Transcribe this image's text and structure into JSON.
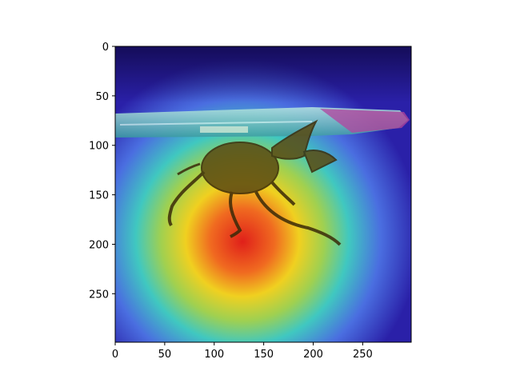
{
  "chart_data": {
    "type": "heatmap",
    "title": "",
    "xlabel": "",
    "ylabel": "",
    "xlim": [
      0,
      299
    ],
    "ylim": [
      299,
      0
    ],
    "xticks": [
      0,
      50,
      100,
      150,
      200,
      250
    ],
    "yticks": [
      0,
      50,
      100,
      150,
      200,
      250
    ],
    "colormap": "jet",
    "overlay_alpha": 0.55,
    "image_subject": "rhinoceros beetle next to a pen",
    "heat_center": [
      125,
      190
    ],
    "heat_spread": [
      105,
      75
    ]
  }
}
